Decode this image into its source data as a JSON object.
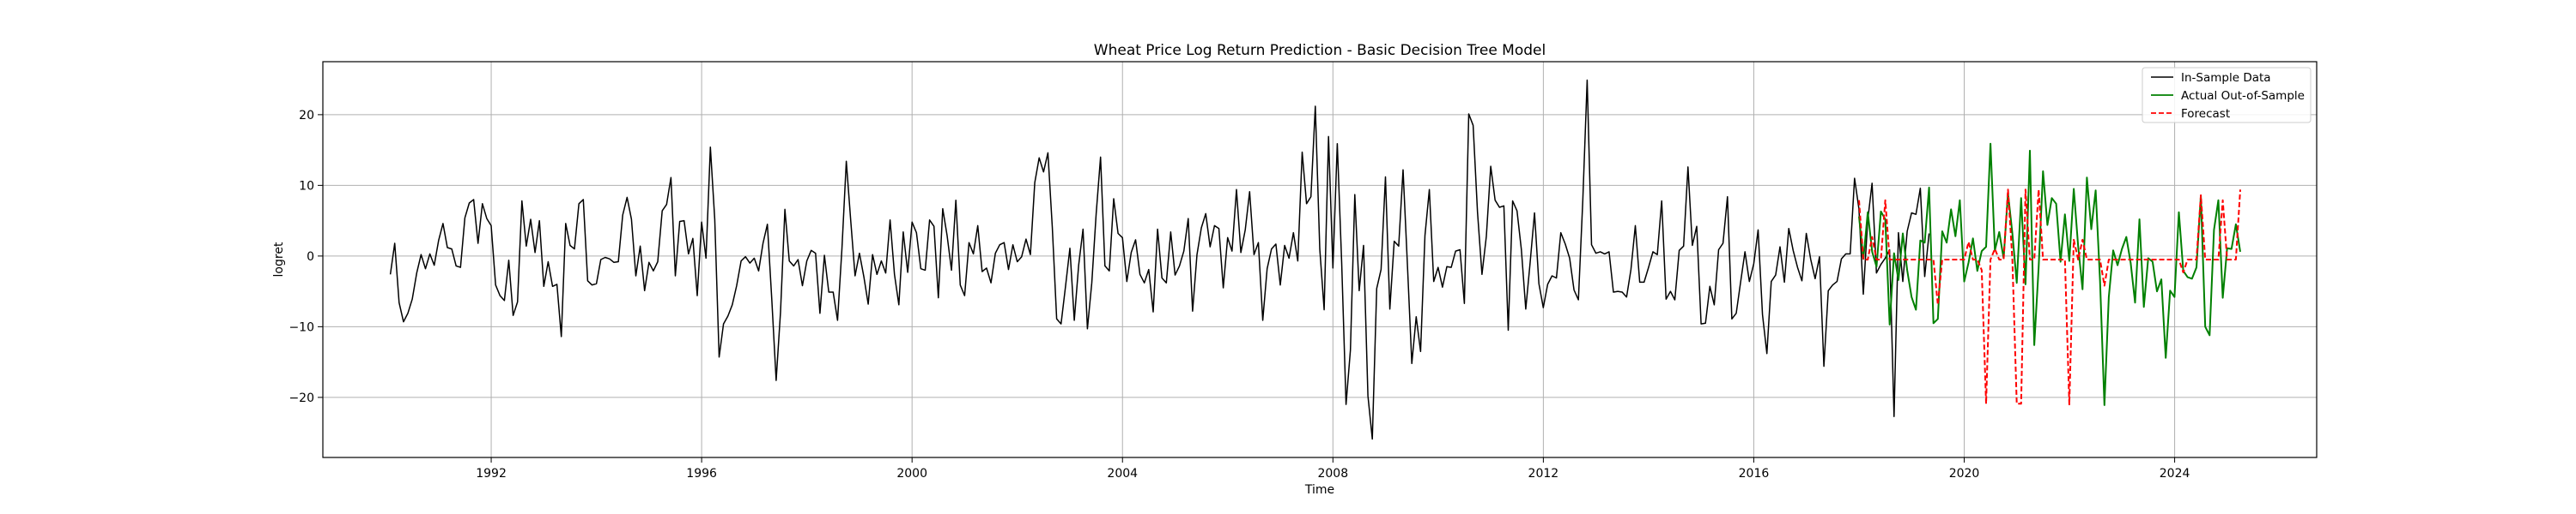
{
  "chart_data": {
    "type": "line",
    "title": "Wheat Price Log Return Prediction - Basic Decision Tree Model",
    "xlabel": "Time",
    "ylabel": "logret",
    "xlim": [
      1988.8,
      2026.7
    ],
    "ylim": [
      -28.5,
      27.5
    ],
    "x_ticks": [
      1992,
      1996,
      2000,
      2004,
      2008,
      2012,
      2016,
      2020,
      2024
    ],
    "x_tick_labels": [
      "1992",
      "1996",
      "2000",
      "2004",
      "2008",
      "2012",
      "2016",
      "2020",
      "2024"
    ],
    "y_ticks": [
      -20,
      -10,
      0,
      10,
      20
    ],
    "y_tick_labels": [
      "−20",
      "−10",
      "0",
      "10",
      "20"
    ],
    "grid": true,
    "legend_position": "top-right",
    "series": [
      {
        "name": "In-Sample Data",
        "color": "#000000",
        "style": "solid",
        "x_start": 1990.0833,
        "x_step": 0.08333,
        "values": [
          -2.6,
          1.8,
          -6.6,
          -9.3,
          -8.1,
          -6.1,
          -2.4,
          0.2,
          -1.8,
          0.3,
          -1.3,
          2.2,
          4.6,
          1.2,
          1.0,
          -1.4,
          -1.6,
          5.4,
          7.5,
          8.0,
          1.8,
          7.4,
          5.3,
          4.3,
          -4.1,
          -5.6,
          -6.3,
          -0.6,
          -8.4,
          -6.5,
          7.8,
          1.4,
          5.2,
          0.5,
          5.0,
          -4.3,
          -0.8,
          -4.3,
          -4.0,
          -11.4,
          4.6,
          1.5,
          1.0,
          7.4,
          8.0,
          -3.5,
          -4.1,
          -3.9,
          -0.5,
          -0.2,
          -0.4,
          -0.9,
          -0.8,
          5.8,
          8.3,
          5.2,
          -2.8,
          1.4,
          -4.9,
          -0.9,
          -2.1,
          -0.8,
          6.4,
          7.3,
          11.1,
          -2.8,
          4.9,
          5.0,
          0.3,
          2.5,
          -5.6,
          4.8,
          -0.3,
          15.4,
          5.2,
          -14.3,
          -9.6,
          -8.5,
          -6.9,
          -4.2,
          -0.7,
          -0.1,
          -1.0,
          -0.3,
          -2.1,
          1.8,
          4.5,
          -6.1,
          -17.6,
          -7.9,
          6.6,
          -0.7,
          -1.4,
          -0.5,
          -4.2,
          -0.7,
          0.8,
          0.4,
          -8.1,
          0.1,
          -5.1,
          -5.1,
          -9.1,
          1.0,
          13.4,
          5.1,
          -2.8,
          0.4,
          -2.9,
          -6.8,
          0.2,
          -2.6,
          -0.7,
          -2.4,
          5.1,
          -2.6,
          -6.9,
          3.4,
          -2.3,
          4.8,
          3.3,
          -1.8,
          -2.0,
          5.1,
          4.2,
          -5.9,
          6.7,
          2.9,
          -2.0,
          7.9,
          -4.1,
          -5.6,
          1.9,
          0.3,
          4.3,
          -2.2,
          -1.7,
          -3.8,
          0.4,
          1.6,
          1.9,
          -1.9,
          1.6,
          -0.8,
          -0.1,
          2.4,
          0.2,
          10.4,
          13.9,
          11.9,
          14.6,
          4.1,
          -8.9,
          -9.6,
          -4.4,
          1.1,
          -9.1,
          -1.3,
          3.8,
          -10.3,
          -3.8,
          6.0,
          14.0,
          -1.4,
          -2.1,
          8.1,
          3.2,
          2.6,
          -3.6,
          0.5,
          2.3,
          -2.6,
          -3.8,
          -1.9,
          -7.9,
          3.8,
          -3.1,
          -3.8,
          3.4,
          -2.7,
          -1.4,
          0.7,
          5.3,
          -7.8,
          0.2,
          4.0,
          6.0,
          1.3,
          4.3,
          3.9,
          -4.5,
          2.6,
          0.7,
          9.4,
          0.5,
          3.7,
          9.1,
          0.2,
          1.9,
          -9.1,
          -1.8,
          1.0,
          1.7,
          -4.1,
          1.5,
          -0.3,
          3.3,
          -0.7,
          14.7,
          7.4,
          8.4,
          21.2,
          1.0,
          -7.6,
          16.9,
          -1.7,
          15.9,
          -0.9,
          -21.0,
          -13.3,
          8.7,
          -4.9,
          1.5,
          -19.8,
          -25.9,
          -4.6,
          -1.9,
          11.2,
          -7.5,
          2.1,
          1.4,
          12.2,
          -1.3,
          -15.2,
          -8.6,
          -13.5,
          2.9,
          9.4,
          -3.6,
          -1.6,
          -4.4,
          -1.5,
          -1.6,
          0.7,
          0.9,
          -6.7,
          20.1,
          18.5,
          6.2,
          -2.6,
          2.8,
          12.7,
          7.9,
          6.9,
          7.1,
          -10.5,
          7.8,
          6.4,
          0.9,
          -7.5,
          -0.9,
          6.1,
          -3.9,
          -7.3,
          -4.0,
          -2.8,
          -3.1,
          3.3,
          1.7,
          -0.3,
          -4.8,
          -6.2,
          7.8,
          24.9,
          1.6,
          0.4,
          0.6,
          0.3,
          0.6,
          -5.1,
          -5.0,
          -5.1,
          -5.8,
          -1.9,
          4.3,
          -3.7,
          -3.7,
          -1.6,
          0.6,
          0.2,
          7.8,
          -6.1,
          -5.0,
          -6.2,
          0.8,
          1.4,
          12.6,
          1.5,
          4.2,
          -9.6,
          -9.5,
          -4.3,
          -6.9,
          0.9,
          1.8,
          8.4,
          -8.9,
          -8.1,
          -3.7,
          0.6,
          -3.6,
          -1.1,
          3.7,
          -8.3,
          -13.8,
          -3.6,
          -2.7,
          1.3,
          -3.7,
          3.9,
          0.8,
          -1.6,
          -3.5,
          3.2,
          -0.5,
          -3.2,
          -0.1,
          -15.6,
          -4.9,
          -4.1,
          -3.6,
          -0.4,
          0.3,
          0.3,
          11.0,
          6.7,
          -5.4,
          5.0,
          10.3,
          -2.4,
          -1.2,
          -0.3,
          0.9,
          -22.7,
          3.3,
          -3.6,
          3.5,
          6.1,
          5.9,
          9.6,
          -2.9,
          3.2
        ]
      },
      {
        "name": "Actual Out-of-Sample",
        "color": "#008000",
        "style": "solid",
        "x_start": 2018.0,
        "x_step": 0.0833,
        "values": [
          5.6,
          -0.4,
          6.2,
          0.6,
          -1.5,
          6.3,
          5.2,
          -9.7,
          0.4,
          -3.4,
          3.2,
          -2.0,
          -5.8,
          -7.6,
          2.2,
          1.9,
          9.7,
          -9.5,
          -8.9,
          3.5,
          1.9,
          6.6,
          2.8,
          7.9,
          -3.6,
          -0.9,
          2.5,
          -2.1,
          0.7,
          1.3,
          15.9,
          0.8,
          3.4,
          -0.3,
          8.9,
          3.2,
          -3.8,
          8.2,
          -4.0,
          14.9,
          -12.6,
          -1.6,
          12.0,
          4.4,
          8.2,
          7.4,
          -0.8,
          5.9,
          -0.7,
          9.5,
          1.4,
          -4.7,
          11.1,
          3.8,
          9.3,
          -3.5,
          -21.1,
          -5.8,
          0.8,
          -1.3,
          1.0,
          2.7,
          -1.0,
          -6.6,
          5.2,
          -7.2,
          -0.3,
          -0.8,
          -5.0,
          -3.3,
          -14.4,
          -4.9,
          -5.8,
          6.2,
          -2.1,
          -3.0,
          -3.2,
          -1.6,
          8.5,
          -10.0,
          -11.2,
          3.7,
          7.9,
          -5.9,
          1.1,
          1.0,
          4.5,
          0.6
        ]
      },
      {
        "name": "Forecast",
        "color": "#ff0000",
        "style": "dashed",
        "x_start": 2018.0,
        "x_step": 0.0833,
        "values": [
          7.9,
          -0.5,
          -0.5,
          2.7,
          -0.5,
          -0.5,
          7.9,
          -0.5,
          -0.5,
          -0.5,
          -0.5,
          -0.5,
          -0.5,
          -0.5,
          -0.5,
          -0.5,
          -0.5,
          -0.5,
          -6.9,
          -0.5,
          -0.5,
          -0.5,
          -0.5,
          -0.5,
          -0.5,
          2.0,
          -0.5,
          -0.5,
          -2.0,
          -20.9,
          -0.5,
          1.0,
          -0.5,
          -0.5,
          9.4,
          -0.5,
          -20.9,
          -20.9,
          9.4,
          -0.5,
          -0.5,
          9.4,
          -0.5,
          -0.5,
          -0.5,
          -0.5,
          -0.5,
          -0.5,
          -21.0,
          2.3,
          -0.5,
          2.3,
          -0.5,
          -0.5,
          -0.5,
          -0.5,
          -4.2,
          -0.5,
          -0.5,
          -0.5,
          -0.5,
          -0.5,
          -0.5,
          -0.5,
          -0.5,
          -0.5,
          -0.5,
          -0.5,
          -0.5,
          -0.5,
          -0.5,
          -0.5,
          -0.5,
          -0.5,
          -2.3,
          -0.5,
          -0.5,
          -0.5,
          8.6,
          -0.5,
          -0.5,
          -0.5,
          -0.5,
          7.9,
          -0.5,
          -0.5,
          -0.5,
          9.4
        ]
      }
    ]
  }
}
